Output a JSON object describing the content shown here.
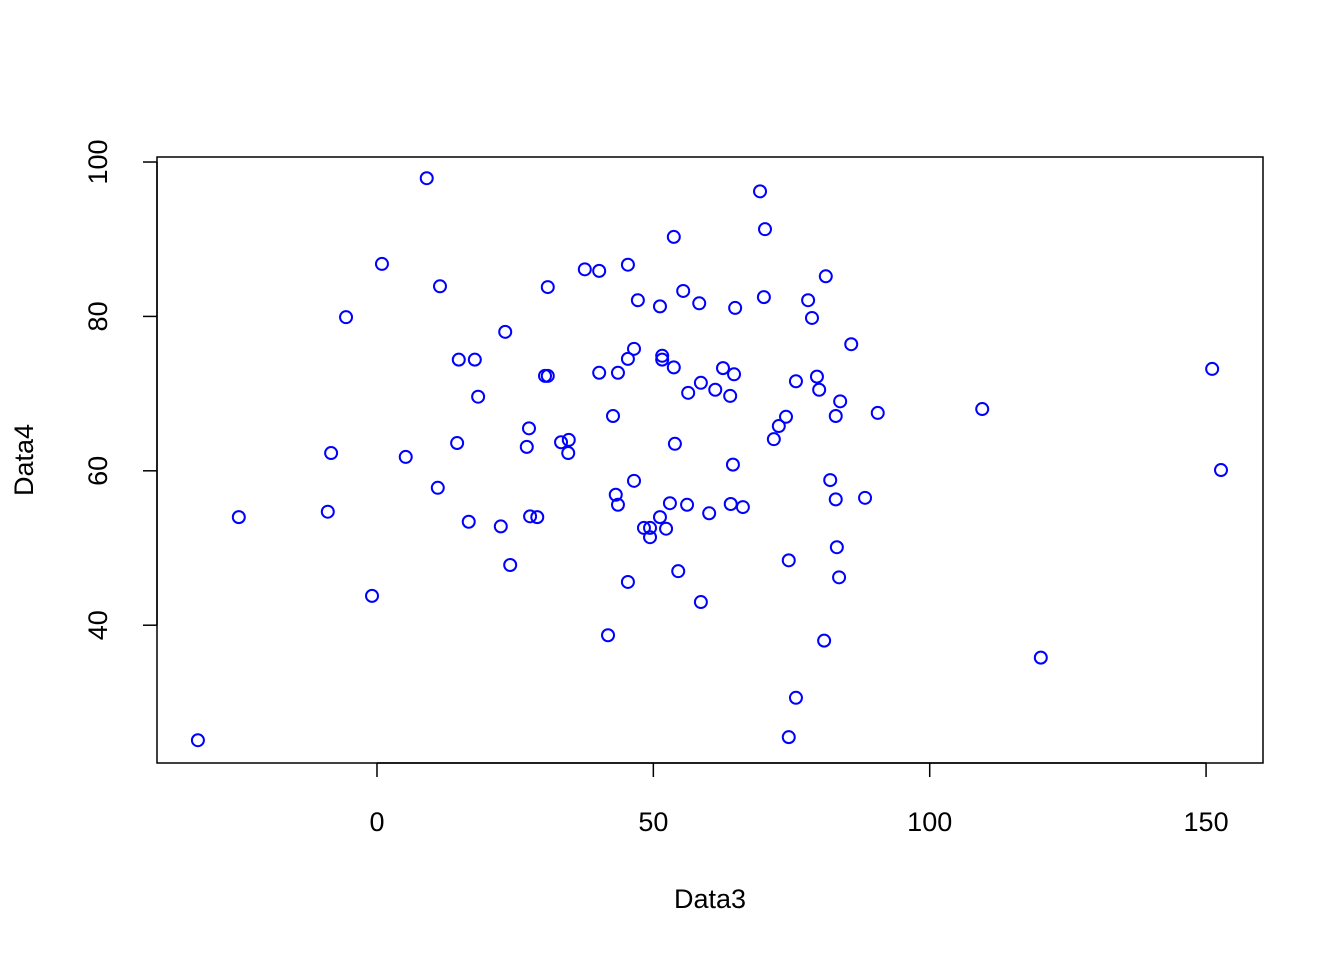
{
  "chart_data": {
    "type": "scatter",
    "x_label": "Data3",
    "y_label": "Data4",
    "color": "#0000ff",
    "x": [
      -32.4,
      -25.0,
      -8.3,
      -8.9,
      -5.6,
      -0.9,
      0.9,
      5.2,
      9.0,
      11.4,
      11.0,
      14.8,
      17.7,
      14.5,
      18.3,
      16.6,
      23.2,
      22.4,
      24.1,
      27.5,
      27.1,
      27.7,
      29.0,
      30.9,
      30.4,
      30.9,
      33.3,
      34.7,
      34.6,
      37.6,
      40.2,
      40.2,
      41.8,
      42.7,
      43.2,
      43.6,
      43.6,
      45.4,
      45.4,
      45.4,
      46.5,
      46.5,
      47.2,
      48.3,
      49.4,
      49.4,
      51.2,
      51.6,
      51.6,
      51.2,
      52.3,
      53.0,
      53.7,
      53.7,
      53.9,
      54.5,
      55.4,
      56.1,
      56.3,
      58.3,
      58.6,
      58.6,
      60.1,
      61.2,
      62.6,
      63.9,
      64.0,
      64.4,
      64.6,
      64.8,
      66.2,
      69.3,
      70.2,
      70.0,
      71.8,
      72.7,
      74.0,
      74.5,
      74.5,
      75.8,
      75.8,
      78.0,
      78.7,
      79.6,
      80.0,
      80.9,
      81.2,
      82.0,
      83.0,
      83.0,
      83.2,
      83.8,
      83.6,
      85.8,
      88.3,
      90.6,
      109.5,
      120.1,
      151.1,
      152.7
    ],
    "values": [
      25.1,
      54.0,
      62.3,
      54.7,
      79.9,
      43.8,
      86.8,
      61.8,
      97.9,
      83.9,
      57.8,
      74.4,
      74.4,
      63.6,
      69.6,
      53.4,
      78.0,
      52.8,
      47.8,
      65.5,
      63.1,
      54.1,
      54.0,
      83.8,
      72.3,
      72.3,
      63.7,
      64.0,
      62.3,
      86.1,
      85.9,
      72.7,
      38.7,
      67.1,
      56.9,
      55.6,
      72.7,
      86.7,
      74.5,
      45.6,
      75.8,
      58.7,
      82.1,
      52.6,
      52.6,
      51.4,
      81.3,
      74.9,
      74.4,
      54.0,
      52.5,
      55.8,
      90.3,
      73.4,
      63.5,
      47.0,
      83.3,
      55.6,
      70.1,
      81.7,
      71.4,
      43.0,
      54.5,
      70.5,
      73.3,
      69.7,
      55.7,
      60.8,
      72.5,
      81.1,
      55.3,
      96.2,
      91.3,
      82.5,
      64.1,
      65.8,
      67.0,
      48.4,
      25.5,
      71.6,
      30.6,
      82.1,
      79.8,
      72.2,
      70.5,
      38.0,
      85.2,
      58.8,
      67.1,
      56.3,
      50.1,
      69.0,
      46.2,
      76.4,
      56.5,
      67.5,
      68.0,
      35.8,
      73.2,
      60.1
    ],
    "xlim": [
      -39.8,
      160.3
    ],
    "ylim": [
      22.15,
      100.65
    ],
    "xticks": [
      0,
      50,
      100,
      150
    ],
    "yticks": [
      40,
      60,
      80,
      100
    ]
  }
}
